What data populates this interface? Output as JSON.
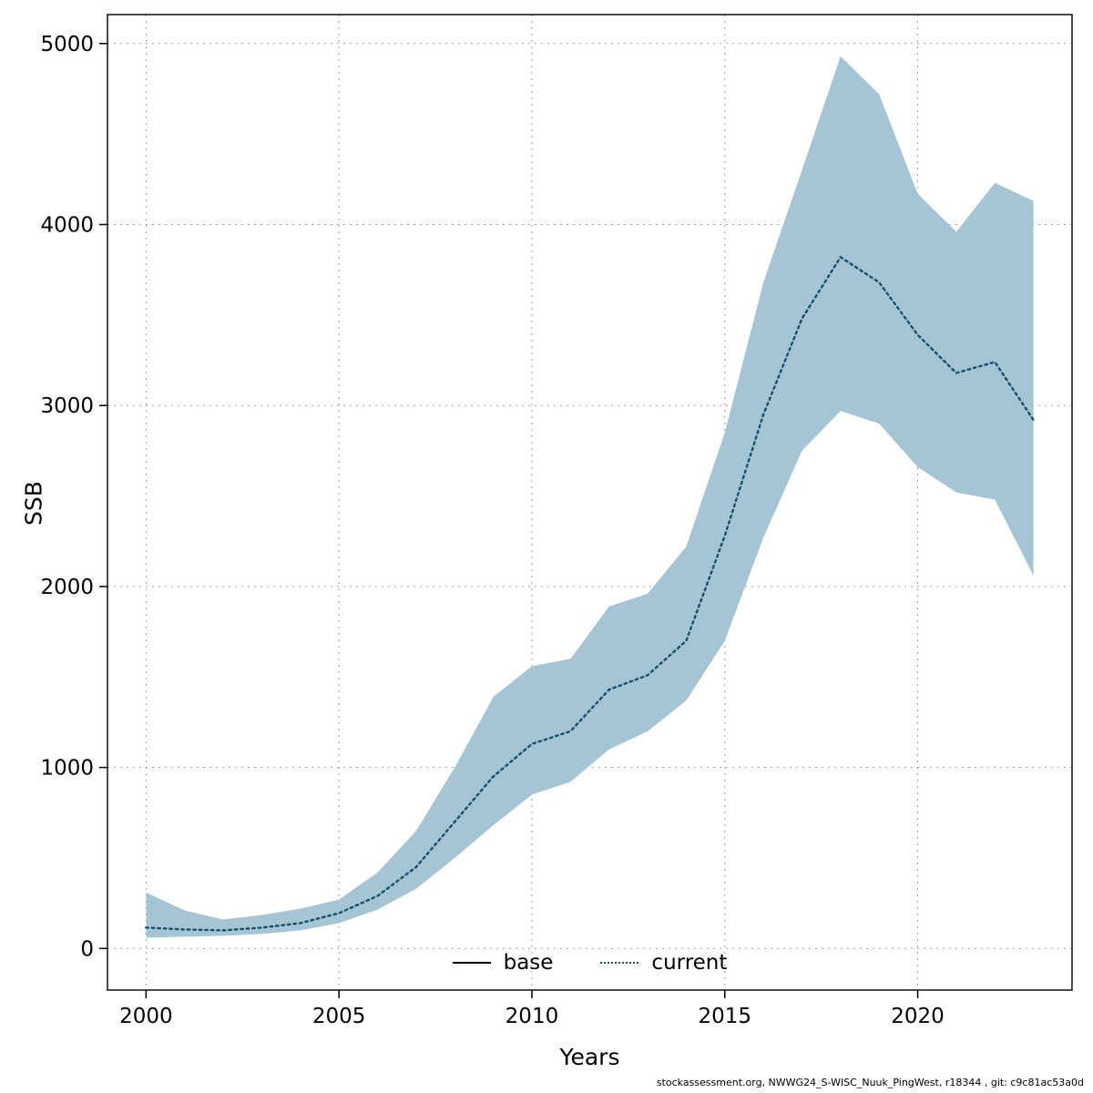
{
  "chart_data": {
    "type": "area",
    "title": "",
    "xlabel": "Years",
    "ylabel": "SSB",
    "xlim": [
      2000,
      2023
    ],
    "ylim": [
      0,
      5000
    ],
    "x_ticks": [
      2000,
      2005,
      2010,
      2015,
      2020
    ],
    "y_ticks": [
      0,
      1000,
      2000,
      3000,
      4000,
      5000
    ],
    "grid": true,
    "x": [
      2000,
      2001,
      2002,
      2003,
      2004,
      2005,
      2006,
      2007,
      2008,
      2009,
      2010,
      2011,
      2012,
      2013,
      2014,
      2015,
      2016,
      2017,
      2018,
      2019,
      2020,
      2021,
      2022,
      2023
    ],
    "series": [
      {
        "name": "current",
        "line": "dotted",
        "color": "#16506e",
        "values": [
          115,
          105,
          100,
          115,
          140,
          195,
          290,
          450,
          700,
          950,
          1130,
          1200,
          1430,
          1510,
          1700,
          2280,
          2950,
          3480,
          3820,
          3680,
          3390,
          3180,
          3240,
          2920
        ]
      }
    ],
    "band": {
      "name": "current-confidence-interval",
      "color": "#a5c4d4",
      "upper": [
        310,
        210,
        160,
        185,
        220,
        270,
        420,
        650,
        1000,
        1390,
        1560,
        1600,
        1890,
        1960,
        2220,
        2850,
        3680,
        4300,
        4930,
        4720,
        4170,
        3960,
        4230,
        4130
      ],
      "lower": [
        60,
        65,
        70,
        80,
        100,
        140,
        215,
        330,
        500,
        680,
        850,
        920,
        1100,
        1200,
        1370,
        1700,
        2270,
        2750,
        2970,
        2900,
        2660,
        2520,
        2480,
        2060
      ]
    },
    "legend": [
      {
        "label": "base",
        "line": "solid",
        "color": "#000000"
      },
      {
        "label": "current",
        "line": "dotted",
        "color": "#16506e"
      }
    ],
    "legend_position": "bottom-inside"
  },
  "footer": {
    "text": "stockassessment.org, NWWG24_S-WISC_Nuuk_PingWest, r18344 , git: c9c81ac53a0d"
  }
}
